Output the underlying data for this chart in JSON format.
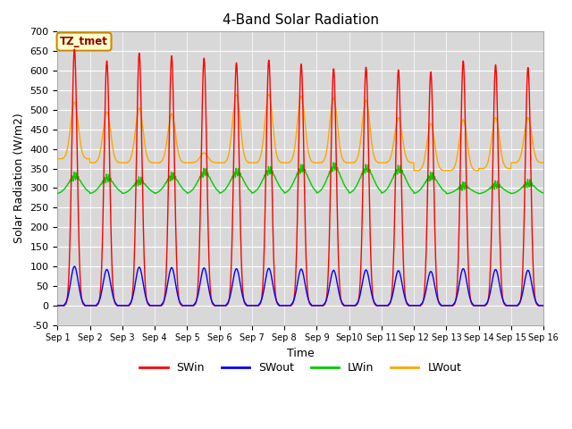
{
  "title": "4-Band Solar Radiation",
  "xlabel": "Time",
  "ylabel": "Solar Radiation (W/m2)",
  "ylim": [
    -50,
    700
  ],
  "n_days": 15,
  "dt_hours": 0.1,
  "SWin_peak": [
    655,
    625,
    645,
    638,
    632,
    620,
    627,
    617,
    605,
    609,
    602,
    597,
    625,
    615,
    608
  ],
  "SWout_peak": [
    100,
    92,
    98,
    97,
    96,
    94,
    95,
    93,
    90,
    91,
    89,
    87,
    94,
    92,
    90
  ],
  "LWin_base": [
    285,
    285,
    285,
    285,
    285,
    285,
    285,
    285,
    285,
    285,
    285,
    285,
    285,
    285,
    285
  ],
  "LWin_day_peak": [
    330,
    325,
    318,
    330,
    340,
    340,
    345,
    350,
    355,
    350,
    348,
    330,
    305,
    308,
    312
  ],
  "LWout_night": [
    375,
    365,
    365,
    365,
    365,
    365,
    365,
    365,
    365,
    365,
    365,
    345,
    345,
    350,
    365
  ],
  "LWout_day_peak": [
    520,
    495,
    505,
    490,
    390,
    540,
    540,
    535,
    530,
    525,
    480,
    465,
    475,
    480,
    480
  ],
  "colors": {
    "SWin": "#ff0000",
    "SWout": "#0000ff",
    "LWin": "#00cc00",
    "LWout": "#ffa500"
  },
  "linewidth": 1.0,
  "bg_color": "#d8d8d8",
  "grid_color": "#ffffff",
  "annotation_label": "TZ_tmet",
  "xtick_labels": [
    "Sep 1",
    "Sep 2",
    "Sep 3",
    "Sep 4",
    "Sep 5",
    "Sep 6",
    "Sep 7",
    "Sep 8",
    "Sep 9",
    "Sep10",
    "Sep 11",
    "Sep 12",
    "Sep 13",
    "Sep 14",
    "Sep 15",
    "Sep 16"
  ]
}
